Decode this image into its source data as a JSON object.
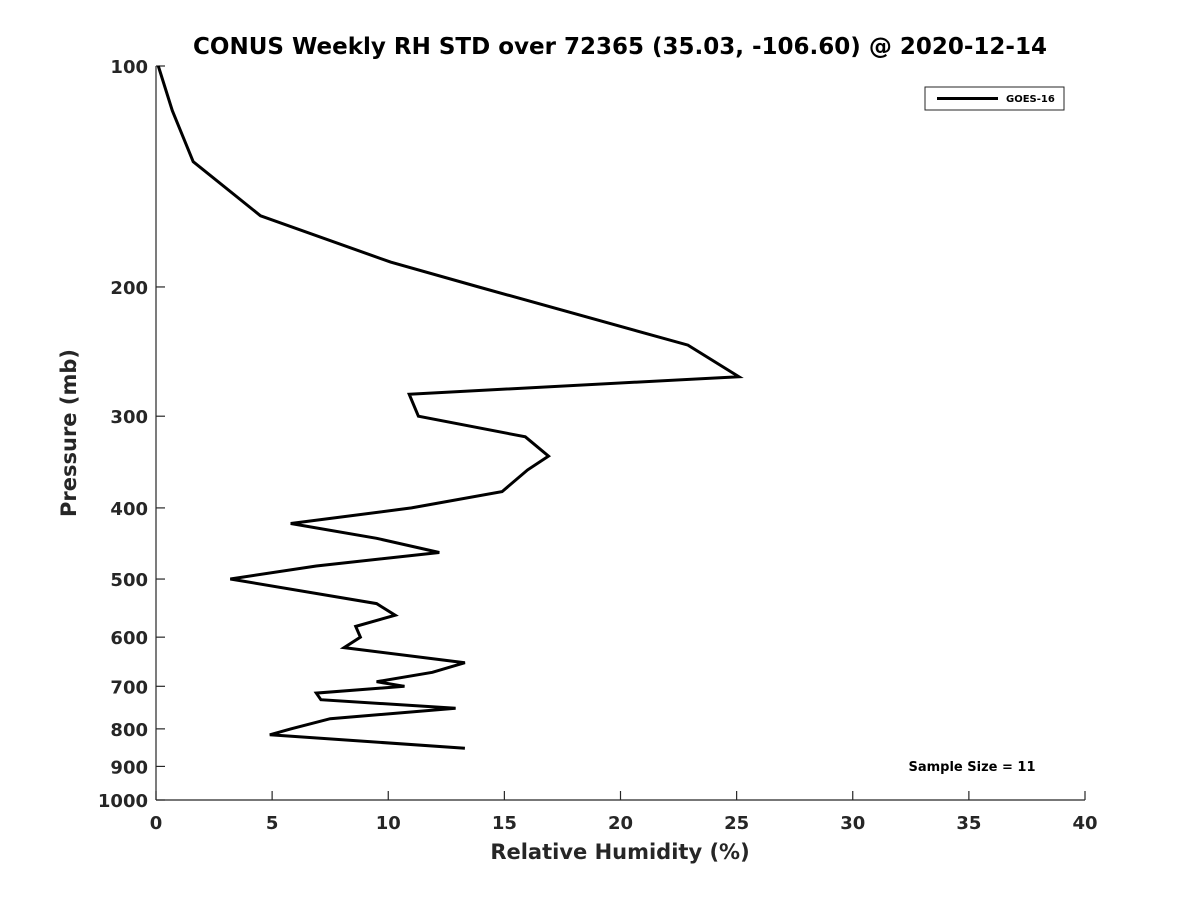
{
  "chart_data": {
    "type": "line",
    "title": "CONUS Weekly RH STD over 72365 (35.03, -106.60) @ 2020-12-14",
    "xlabel": "Relative Humidity (%)",
    "ylabel": "Pressure (mb)",
    "xlim": [
      0,
      40
    ],
    "ylim": [
      100,
      1000
    ],
    "y_scale": "log",
    "y_reversed": true,
    "x_ticks": [
      "0",
      "5",
      "10",
      "15",
      "20",
      "25",
      "30",
      "35",
      "40"
    ],
    "y_ticks": [
      "100",
      "200",
      "300",
      "400",
      "500",
      "600",
      "700",
      "800",
      "900",
      "1000"
    ],
    "grid": false,
    "legend_position": "top-right",
    "annotation": "Sample Size = 11",
    "series": [
      {
        "name": "GOES-16",
        "color": "#000000",
        "points": [
          [
            0.1,
            100
          ],
          [
            0.7,
            115
          ],
          [
            1.6,
            135
          ],
          [
            4.5,
            160
          ],
          [
            10.1,
            185
          ],
          [
            13.9,
            200
          ],
          [
            22.9,
            240
          ],
          [
            25.1,
            265
          ],
          [
            10.9,
            280
          ],
          [
            11.3,
            300
          ],
          [
            15.9,
            320
          ],
          [
            16.9,
            340
          ],
          [
            16.0,
            355
          ],
          [
            14.9,
            380
          ],
          [
            11.0,
            400
          ],
          [
            5.8,
            420
          ],
          [
            9.5,
            440
          ],
          [
            12.2,
            460
          ],
          [
            6.9,
            480
          ],
          [
            3.2,
            500
          ],
          [
            9.5,
            540
          ],
          [
            10.3,
            560
          ],
          [
            8.6,
            580
          ],
          [
            8.8,
            600
          ],
          [
            8.1,
            620
          ],
          [
            13.3,
            650
          ],
          [
            11.9,
            670
          ],
          [
            9.5,
            690
          ],
          [
            10.7,
            700
          ],
          [
            6.9,
            715
          ],
          [
            7.1,
            730
          ],
          [
            12.9,
            750
          ],
          [
            7.5,
            775
          ],
          [
            5.8,
            800
          ],
          [
            4.9,
            815
          ],
          [
            13.3,
            850
          ]
        ]
      }
    ]
  }
}
